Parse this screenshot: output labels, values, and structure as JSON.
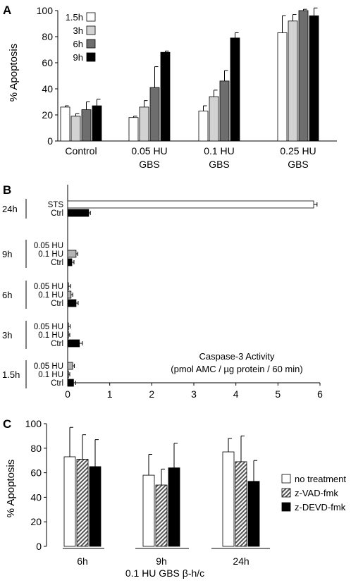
{
  "figure": {
    "panels": [
      "A",
      "B",
      "C"
    ],
    "colors": {
      "white": "#ffffff",
      "light_gray": "#d2d2d2",
      "dark_gray": "#6e6e6e",
      "black": "#000000",
      "hatch_gray": "#8a8a8a"
    }
  },
  "chart_data": [
    {
      "panel": "A",
      "type": "bar",
      "ylabel": "% Apoptosis",
      "ylim": [
        0,
        100
      ],
      "yticks": [
        0,
        20,
        40,
        60,
        80,
        100
      ],
      "categories": [
        [
          "Control"
        ],
        [
          "0.05 HU",
          "GBS"
        ],
        [
          "0.1 HU",
          "GBS"
        ],
        [
          "0.25 HU",
          "GBS"
        ]
      ],
      "legend_position": "top-left",
      "series": [
        {
          "name": "1.5h",
          "color": "#ffffff",
          "values": [
            26,
            18,
            23,
            83
          ],
          "errors": [
            1,
            1,
            4,
            13
          ]
        },
        {
          "name": "3h",
          "color": "#d2d2d2",
          "values": [
            19,
            26,
            34,
            92
          ],
          "errors": [
            2,
            5,
            5,
            5
          ]
        },
        {
          "name": "6h",
          "color": "#6e6e6e",
          "values": [
            24,
            41,
            46,
            100
          ],
          "errors": [
            6,
            16,
            8,
            1
          ]
        },
        {
          "name": "9h",
          "color": "#000000",
          "values": [
            27,
            68,
            79,
            96
          ],
          "errors": [
            5,
            1,
            4,
            6
          ]
        }
      ]
    },
    {
      "panel": "B",
      "type": "bar",
      "orientation": "horizontal",
      "annotation": [
        "Caspase-3 Activity",
        "(pmol AMC / µg protein / 60 min)"
      ],
      "xlim": [
        0,
        6
      ],
      "xticks": [
        0,
        1,
        2,
        3,
        4,
        5,
        6
      ],
      "groups": [
        {
          "label": "24h",
          "bars": [
            {
              "label": "STS",
              "value": 5.85,
              "error": 0.08,
              "color": "#ffffff"
            },
            {
              "label": "Ctrl",
              "value": 0.5,
              "error": 0.04,
              "color": "#000000"
            }
          ]
        },
        {
          "label": "9h",
          "bars": [
            {
              "label": "0.05 HU",
              "value": 0.0,
              "error": 0.0,
              "color": "#ffffff"
            },
            {
              "label": "0.1 HU",
              "value": 0.2,
              "error": 0.04,
              "color": "#b4b4b4"
            },
            {
              "label": "Ctrl",
              "value": 0.1,
              "error": 0.05,
              "color": "#000000"
            }
          ]
        },
        {
          "label": "6h",
          "bars": [
            {
              "label": "0.05 HU",
              "value": 0.02,
              "error": 0.05,
              "color": "#b4b4b4"
            },
            {
              "label": "0.1 HU",
              "value": 0.08,
              "error": 0.04,
              "color": "#b4b4b4"
            },
            {
              "label": "Ctrl",
              "value": 0.2,
              "error": 0.05,
              "color": "#000000"
            }
          ]
        },
        {
          "label": "3h",
          "bars": [
            {
              "label": "0.05 HU",
              "value": 0.02,
              "error": 0.04,
              "color": "#b4b4b4"
            },
            {
              "label": "0.1 HU",
              "value": 0.02,
              "error": 0.03,
              "color": "#b4b4b4"
            },
            {
              "label": "Ctrl",
              "value": 0.28,
              "error": 0.07,
              "color": "#000000"
            }
          ]
        },
        {
          "label": "1.5h",
          "bars": [
            {
              "label": "0.05 HU",
              "value": 0.12,
              "error": 0.04,
              "color": "#b4b4b4"
            },
            {
              "label": "0.1 HU",
              "value": 0.02,
              "error": 0.03,
              "color": "#b4b4b4"
            },
            {
              "label": "Ctrl",
              "value": 0.14,
              "error": 0.05,
              "color": "#000000"
            }
          ]
        }
      ]
    },
    {
      "panel": "C",
      "type": "bar",
      "ylabel": "% Apoptosis",
      "xlabel": "0.1 HU GBS β-h/c",
      "ylim": [
        0,
        100
      ],
      "yticks": [
        0,
        20,
        40,
        60,
        80,
        100
      ],
      "categories": [
        "6h",
        "9h",
        "24h"
      ],
      "legend_position": "right",
      "series": [
        {
          "name": "no treatment",
          "color": "#ffffff",
          "pattern": "solid",
          "values": [
            73,
            58,
            77
          ],
          "errors": [
            24,
            17,
            11
          ]
        },
        {
          "name": "z-VAD-fmk",
          "color": "#8a8a8a",
          "pattern": "hatch",
          "values": [
            71,
            50,
            69
          ],
          "errors": [
            20,
            13,
            21
          ]
        },
        {
          "name": "z-DEVD-fmk",
          "color": "#000000",
          "pattern": "solid",
          "values": [
            65,
            64,
            53
          ],
          "errors": [
            22,
            20,
            17
          ]
        }
      ]
    }
  ]
}
